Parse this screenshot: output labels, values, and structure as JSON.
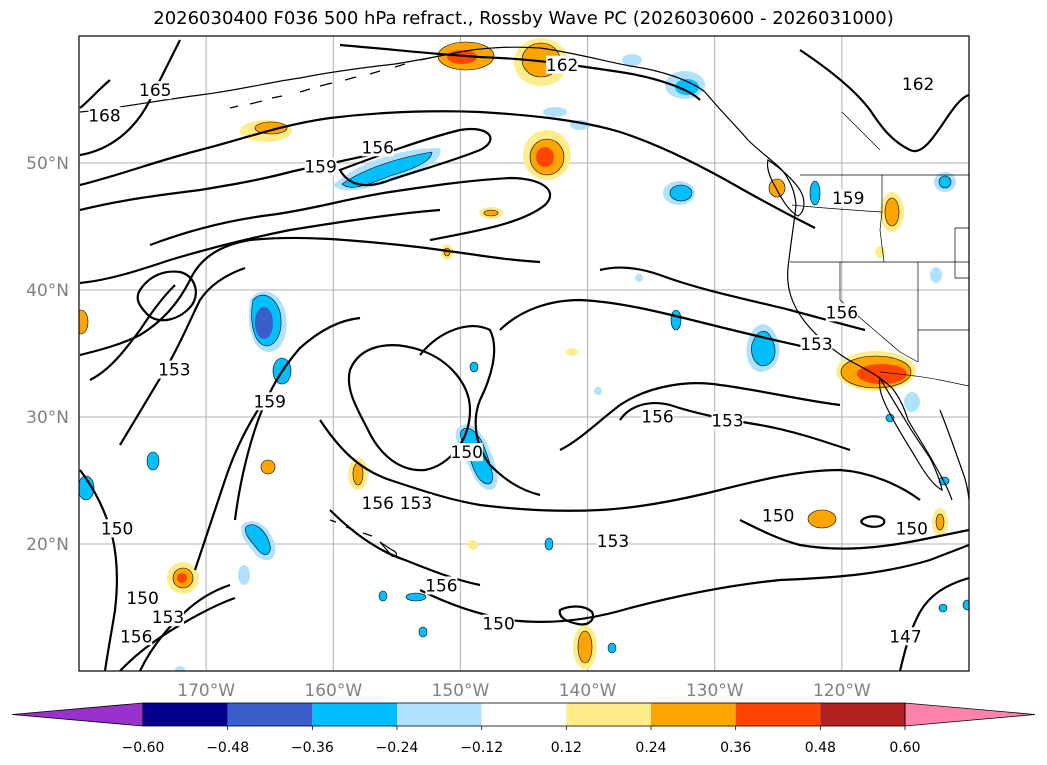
{
  "title": "2026030400 F036 500 hPa refract., Rossby Wave PC (2026030600 - 2026031000)",
  "map": {
    "lon_range": [
      -180,
      -110
    ],
    "lat_range": [
      10,
      60
    ],
    "lat_ticks": [
      {
        "value": 20,
        "label": "20°N"
      },
      {
        "value": 30,
        "label": "30°N"
      },
      {
        "value": 40,
        "label": "40°N"
      },
      {
        "value": 50,
        "label": "50°N"
      }
    ],
    "lon_ticks": [
      {
        "value": -170,
        "label": "170°W"
      },
      {
        "value": -160,
        "label": "160°W"
      },
      {
        "value": -150,
        "label": "150°W"
      },
      {
        "value": -140,
        "label": "140°W"
      },
      {
        "value": -130,
        "label": "130°W"
      },
      {
        "value": -120,
        "label": "120°W"
      }
    ],
    "contour_labels": [
      {
        "text": "165",
        "lon": -174,
        "lat": 55.5
      },
      {
        "text": "168",
        "lon": -178,
        "lat": 53.5
      },
      {
        "text": "159",
        "lon": -161,
        "lat": 49.5
      },
      {
        "text": "156",
        "lon": -156.5,
        "lat": 51
      },
      {
        "text": "162",
        "lon": -142,
        "lat": 57.5
      },
      {
        "text": "162",
        "lon": -114,
        "lat": 56
      },
      {
        "text": "159",
        "lon": -119.5,
        "lat": 47
      },
      {
        "text": "156",
        "lon": -120,
        "lat": 38
      },
      {
        "text": "153",
        "lon": -122,
        "lat": 35.5
      },
      {
        "text": "153",
        "lon": -172.5,
        "lat": 33.5
      },
      {
        "text": "159",
        "lon": -165,
        "lat": 31
      },
      {
        "text": "150",
        "lon": -149.5,
        "lat": 27
      },
      {
        "text": "156",
        "lon": -134.5,
        "lat": 29.8
      },
      {
        "text": "153",
        "lon": -129,
        "lat": 29.5
      },
      {
        "text": "156",
        "lon": -156.5,
        "lat": 23
      },
      {
        "text": "153",
        "lon": -153.5,
        "lat": 23
      },
      {
        "text": "153",
        "lon": -138,
        "lat": 20
      },
      {
        "text": "150",
        "lon": -125,
        "lat": 22
      },
      {
        "text": "150",
        "lon": -114.5,
        "lat": 21
      },
      {
        "text": "150",
        "lon": -177,
        "lat": 21
      },
      {
        "text": "156",
        "lon": -151.5,
        "lat": 16.5
      },
      {
        "text": "150",
        "lon": -147,
        "lat": 13.5
      },
      {
        "text": "150",
        "lon": -175,
        "lat": 15.5
      },
      {
        "text": "153",
        "lon": -173,
        "lat": 14
      },
      {
        "text": "156",
        "lon": -175.5,
        "lat": 12.5
      },
      {
        "text": "147",
        "lon": -115,
        "lat": 12.5
      }
    ]
  },
  "colorbar": {
    "colors": [
      "#9932cc",
      "#00008b",
      "#3a5fcd",
      "#00bfff",
      "#b0e2ff",
      "#ffffff",
      "#ffec8b",
      "#ffa500",
      "#ff4500",
      "#b22222",
      "#ff82ab"
    ],
    "tick_labels": [
      "−0.60",
      "−0.48",
      "−0.36",
      "−0.24",
      "−0.12",
      "0.12",
      "0.24",
      "0.36",
      "0.48",
      "0.60"
    ]
  }
}
